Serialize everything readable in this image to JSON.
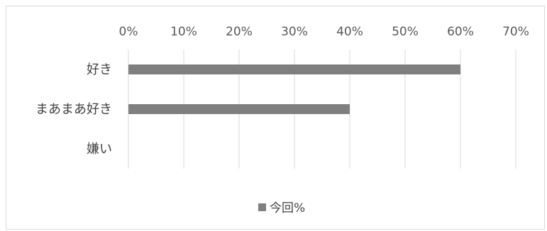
{
  "chart_data": {
    "type": "bar",
    "orientation": "horizontal",
    "categories": [
      "好き",
      "まあまあ好き",
      "嫌い"
    ],
    "series": [
      {
        "name": "今回%",
        "values": [
          60,
          40,
          0
        ],
        "color": "#7f7f7f"
      }
    ],
    "x_ticks": [
      "0%",
      "10%",
      "20%",
      "30%",
      "40%",
      "50%",
      "60%",
      "70%"
    ],
    "xlim": [
      0,
      70
    ],
    "x_axis_position": "top",
    "grid": "vertical",
    "legend_position": "bottom",
    "title": "",
    "xlabel": "",
    "ylabel": ""
  }
}
